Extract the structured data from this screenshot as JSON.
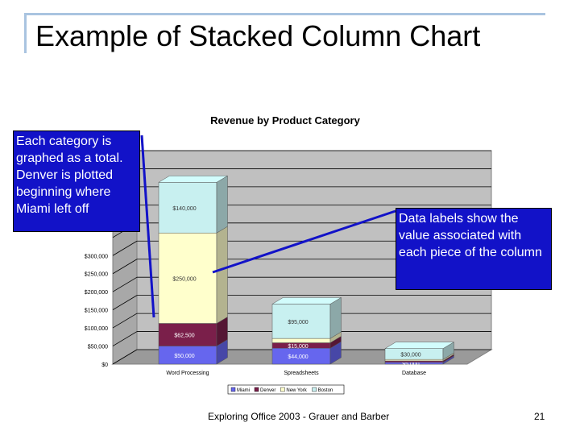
{
  "slide": {
    "title": "Example of Stacked Column Chart",
    "footer": "Exploring Office 2003 - Grauer and Barber",
    "page_number": "21"
  },
  "callouts": {
    "left": "Each category is graphed as a total. Denver is plotted beginning where Miami left off",
    "right": "Data labels show the value associated with each piece of the column"
  },
  "colors": {
    "miami": "#6666ee",
    "denver": "#7a1f4a",
    "new_york": "#ffffcc",
    "boston": "#c8f0f0",
    "callout": "#1212c8",
    "frame": "#a9c4e0"
  },
  "chart_data": {
    "type": "bar",
    "stacked": true,
    "three_d": true,
    "title": "Revenue by Product Category",
    "categories": [
      "Word Processing",
      "Spreadsheets",
      "Database"
    ],
    "series": [
      {
        "name": "Miami",
        "values": [
          50000,
          44000,
          5000
        ],
        "labels": [
          "$50,000",
          "$44,000",
          "$5,000"
        ]
      },
      {
        "name": "Denver",
        "values": [
          62500,
          15000,
          4000
        ],
        "labels": [
          "$62,500",
          "$15,000",
          ""
        ]
      },
      {
        "name": "New York",
        "values": [
          250000,
          12000,
          4000
        ],
        "labels": [
          "$250,000",
          "",
          ""
        ]
      },
      {
        "name": "Boston",
        "values": [
          140000,
          95000,
          30000
        ],
        "labels": [
          "$140,000",
          "$95,000",
          "$30,000"
        ]
      }
    ],
    "y_ticks": [
      "$0",
      "$50,000",
      "$100,000",
      "$150,000",
      "$200,000",
      "$250,000",
      "$300,000"
    ],
    "ylim": [
      0,
      550000
    ],
    "legend_position": "bottom",
    "grid": true
  }
}
